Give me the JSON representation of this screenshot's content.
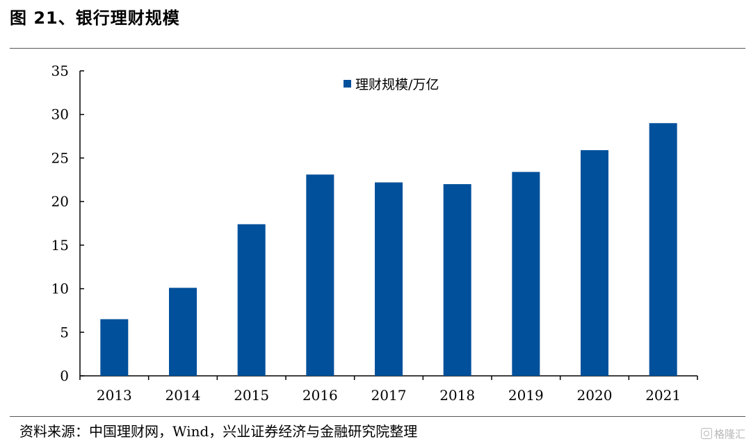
{
  "figure": {
    "title": "图 21、银行理财规模",
    "source": "资料来源：中国理财网，Wind，兴业证券经济与金融研究院整理",
    "watermark": "格隆汇"
  },
  "colors": {
    "bar": "#00509B",
    "axis": "#000000",
    "rule": "#555555"
  },
  "chart_data": {
    "type": "bar",
    "title": "",
    "xlabel": "",
    "ylabel": "",
    "categories": [
      "2013",
      "2014",
      "2015",
      "2016",
      "2017",
      "2018",
      "2019",
      "2020",
      "2021"
    ],
    "series": [
      {
        "name": "理财规模/万亿",
        "values": [
          6.5,
          10.1,
          17.4,
          23.1,
          22.2,
          22.0,
          23.4,
          25.9,
          29.0
        ]
      }
    ],
    "ylim": [
      0,
      35
    ],
    "yticks": [
      "0",
      "5",
      "10",
      "15",
      "20",
      "25",
      "30",
      "35"
    ],
    "grid": false,
    "legend_position": "top-center"
  }
}
